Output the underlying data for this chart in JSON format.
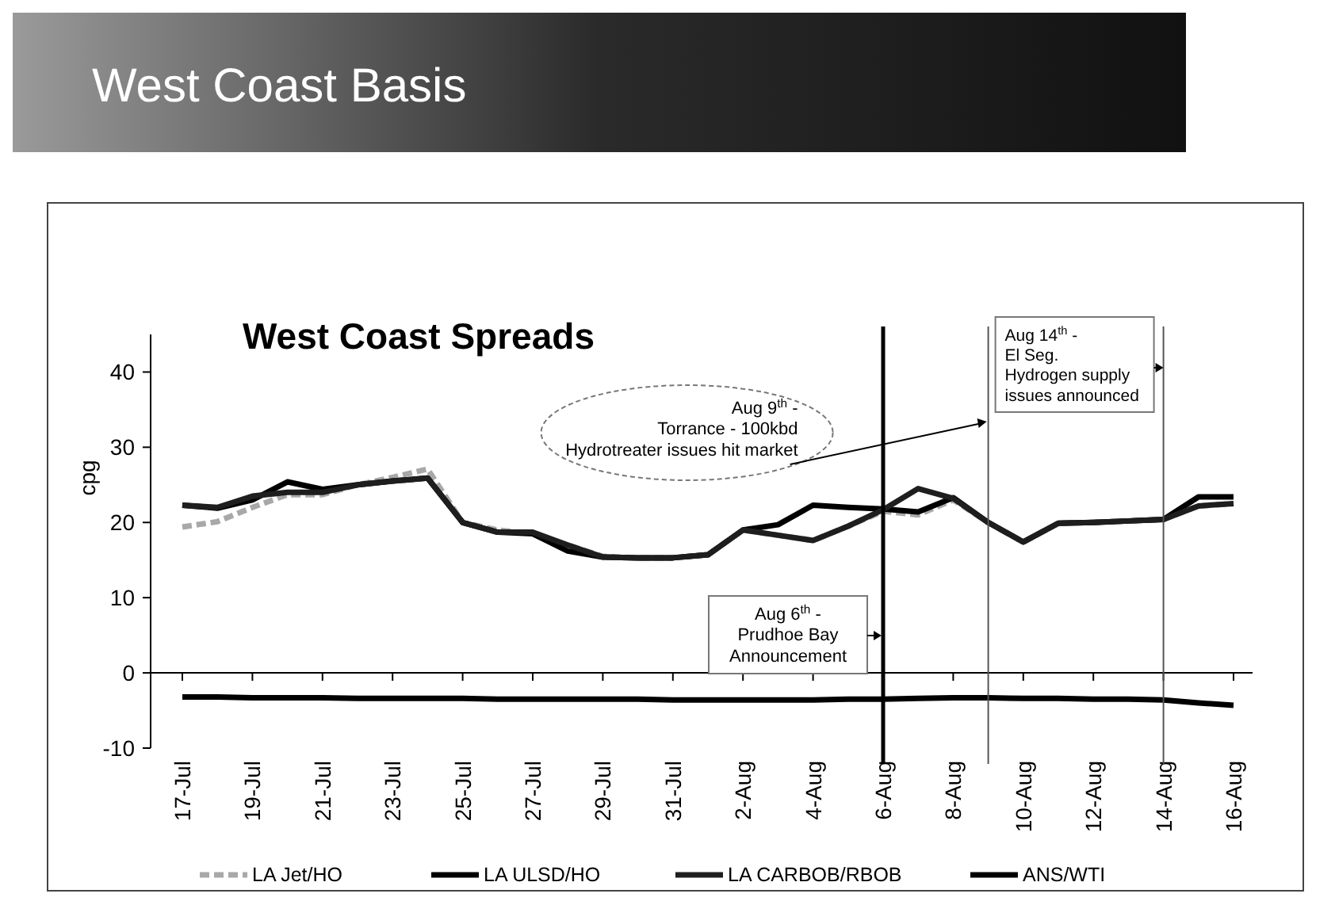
{
  "chart_data": {
    "type": "line",
    "title": "West Coast Basis",
    "subtitle": "West Coast Spreads",
    "ylabel": "cpg",
    "x": [
      "--07-17",
      "--07-18",
      "--07-19",
      "--07-20",
      "--07-21",
      "--07-22",
      "--07-23",
      "--07-24",
      "--07-25",
      "--07-26",
      "--07-27",
      "--07-28",
      "--07-29",
      "--07-30",
      "--07-31",
      "--08-01",
      "--08-02",
      "--08-03",
      "--08-04",
      "--08-05",
      "--08-06",
      "--08-07",
      "--08-08",
      "--08-09",
      "--08-10",
      "--08-11",
      "--08-12",
      "--08-13",
      "--08-14",
      "--08-15",
      "--08-16"
    ],
    "xlim": [
      "--07-17",
      "--08-16"
    ],
    "xticks": [
      {
        "value": "--07-17",
        "label": "17-Jul"
      },
      {
        "value": "--07-19",
        "label": "19-Jul"
      },
      {
        "value": "--07-21",
        "label": "21-Jul"
      },
      {
        "value": "--07-23",
        "label": "23-Jul"
      },
      {
        "value": "--07-25",
        "label": "25-Jul"
      },
      {
        "value": "--07-27",
        "label": "27-Jul"
      },
      {
        "value": "--07-29",
        "label": "29-Jul"
      },
      {
        "value": "--07-31",
        "label": "31-Jul"
      },
      {
        "value": "--08-02",
        "label": "2-Aug"
      },
      {
        "value": "--08-04",
        "label": "4-Aug"
      },
      {
        "value": "--08-06",
        "label": "6-Aug"
      },
      {
        "value": "--08-08",
        "label": "8-Aug"
      },
      {
        "value": "--08-10",
        "label": "10-Aug"
      },
      {
        "value": "--08-12",
        "label": "12-Aug"
      },
      {
        "value": "--08-14",
        "label": "14-Aug"
      },
      {
        "value": "--08-16",
        "label": "16-Aug"
      }
    ],
    "ylim": [
      -10,
      45
    ],
    "yticks": [
      -10,
      0,
      10,
      20,
      30,
      40
    ],
    "grid": false,
    "legend": "bottom",
    "marker": "none",
    "series": [
      {
        "name": "LA Jet/HO",
        "color": "#a8a8a8",
        "line_style": "dashed",
        "values": [
          19.4,
          20.1,
          22,
          23.7,
          23.7,
          25,
          26,
          27.1,
          20,
          19,
          18.5,
          17,
          15.5,
          15.3,
          15.3,
          15.7,
          19,
          18.3,
          17.6,
          19.5,
          21.5,
          21,
          23,
          20,
          17.4,
          19.9,
          20,
          20.2,
          20.4,
          22.2,
          22.5
        ]
      },
      {
        "name": "LA ULSD/HO",
        "color": "#000000",
        "line_style": "solid",
        "values": [
          22.3,
          21.9,
          23,
          25.4,
          24.4,
          25,
          25.5,
          25.9,
          20,
          18.7,
          18.5,
          16.2,
          15.4,
          15.3,
          15.3,
          15.7,
          19,
          19.7,
          22.3,
          22,
          21.8,
          21.4,
          23.3,
          20,
          17.4,
          19.9,
          20,
          20.2,
          20.4,
          23.4,
          23.4
        ]
      },
      {
        "name": "LA CARBOB/RBOB",
        "color": "#1e1e1e",
        "line_style": "solid",
        "values": [
          22.3,
          22,
          23.5,
          24,
          24,
          25,
          25.5,
          25.9,
          20,
          18.7,
          18.7,
          17,
          15.4,
          15.3,
          15.3,
          15.7,
          19,
          18.3,
          17.6,
          19.5,
          21.7,
          24.5,
          23.2,
          20,
          17.4,
          19.9,
          20,
          20.2,
          20.4,
          22.2,
          22.5
        ]
      },
      {
        "name": "ANS/WTI",
        "color": "#000000",
        "line_style": "solid",
        "values": [
          -3.2,
          -3.2,
          -3.3,
          -3.3,
          -3.3,
          -3.4,
          -3.4,
          -3.4,
          -3.4,
          -3.5,
          -3.5,
          -3.5,
          -3.5,
          -3.5,
          -3.6,
          -3.6,
          -3.6,
          -3.6,
          -3.6,
          -3.5,
          -3.5,
          -3.4,
          -3.3,
          -3.3,
          -3.4,
          -3.4,
          -3.5,
          -3.5,
          -3.6,
          -4,
          -4.3
        ]
      }
    ],
    "ref_lines": [
      {
        "axis": "x",
        "value": "--08-06",
        "label": "Aug 6$^{th}$ -\nPrudhoe Bay\nAnnouncement",
        "color": "#000000"
      },
      {
        "axis": "x",
        "value": "--08-09",
        "label": "Aug 9$^{th}$ -\nTorrance - 100kbd\nHydrotreater issues hit market",
        "color": "#555555"
      },
      {
        "axis": "x",
        "value": "--08-14",
        "label": "Aug 14$^{th}$ -\nEl Seg.\nHydrogen supply\nissues announced",
        "color": "#555555"
      }
    ]
  }
}
